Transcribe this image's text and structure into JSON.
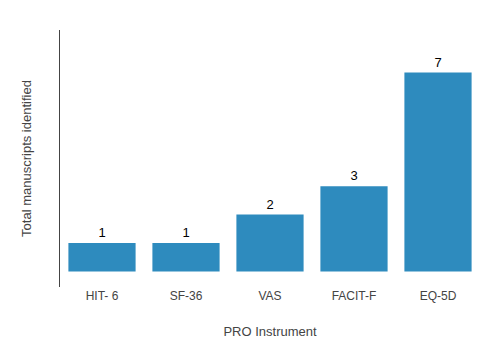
{
  "chart_data": {
    "type": "bar",
    "categories": [
      "HIT- 6",
      "SF-36",
      "VAS",
      "FACIT-F",
      "EQ-5D"
    ],
    "values": [
      1,
      1,
      2,
      3,
      7
    ],
    "color": "#2E8BBE",
    "xlabel": "PRO Instrument",
    "ylabel": "Total manuscripts identified",
    "ylim": [
      -0.55,
      8.5
    ],
    "grid": false,
    "data_labels": true,
    "tick_labels": "x"
  }
}
